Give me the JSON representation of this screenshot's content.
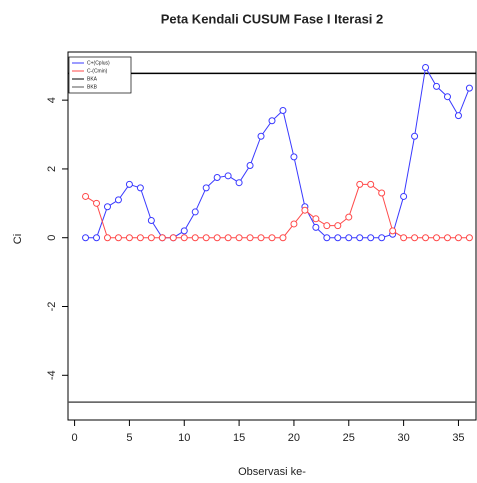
{
  "chart_data": {
    "type": "line",
    "title": "Peta Kendali CUSUM Fase I Iterasi 2",
    "xlabel": "Observasi ke-",
    "ylabel": "Ci",
    "x": [
      1,
      2,
      3,
      4,
      5,
      6,
      7,
      8,
      9,
      10,
      11,
      12,
      13,
      14,
      15,
      16,
      17,
      18,
      19,
      20,
      21,
      22,
      23,
      24,
      25,
      26,
      27,
      28,
      29,
      30,
      31,
      32,
      33,
      34,
      35,
      36
    ],
    "series": [
      {
        "name": "C+(Cplus)",
        "color": "#3a3aff",
        "values": [
          0,
          0,
          0.9,
          1.1,
          1.55,
          1.45,
          0.5,
          0,
          0,
          0.2,
          0.75,
          1.45,
          1.75,
          1.8,
          1.6,
          2.1,
          2.95,
          3.4,
          3.7,
          2.35,
          0.9,
          0.3,
          0,
          0,
          0,
          0,
          0,
          0,
          0.1,
          1.2,
          2.95,
          4.95,
          4.4,
          4.1,
          3.55,
          4.35
        ]
      },
      {
        "name": "C-(Cmin)",
        "color": "#ff4a4a",
        "values": [
          1.2,
          1.0,
          0,
          0,
          0,
          0,
          0,
          0,
          0,
          0,
          0,
          0,
          0,
          0,
          0,
          0,
          0,
          0,
          0,
          0.4,
          0.8,
          0.55,
          0.35,
          0.35,
          0.6,
          1.55,
          1.55,
          1.3,
          0.2,
          0,
          0,
          0,
          0,
          0,
          0,
          0
        ]
      }
    ],
    "reference_lines": [
      {
        "name": "BKA",
        "value": 4.78,
        "color": "#000000"
      },
      {
        "name": "BKB",
        "value": -4.78,
        "color": "#555555"
      }
    ],
    "xlim": [
      -0.6,
      36.6
    ],
    "ylim": [
      -5.3,
      5.4
    ],
    "xticks": [
      0,
      5,
      10,
      15,
      20,
      25,
      30,
      35
    ],
    "yticks": [
      -4,
      -2,
      0,
      2,
      4
    ]
  }
}
